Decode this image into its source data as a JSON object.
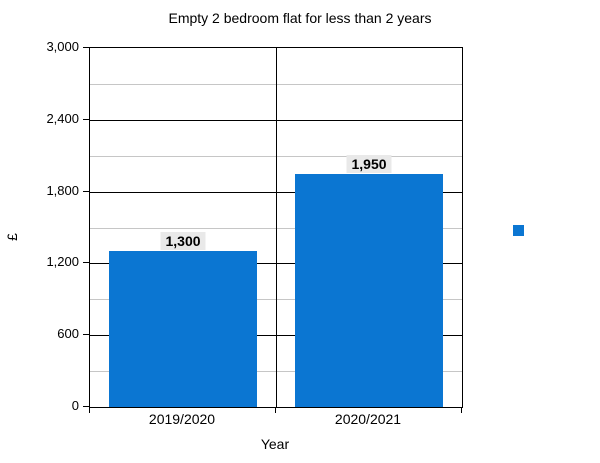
{
  "chart_data": {
    "type": "bar",
    "title": "Empty 2 bedroom flat for less than 2 years",
    "xlabel": "Year",
    "ylabel": "£",
    "categories": [
      "2019/2020",
      "2020/2021"
    ],
    "series": [
      {
        "name": "",
        "values": [
          1300,
          1950
        ]
      }
    ],
    "value_labels": [
      "1,300",
      "1,950"
    ],
    "ylim": [
      0,
      3000
    ],
    "y_major_ticks": [
      {
        "value": 0,
        "label": "0"
      },
      {
        "value": 600,
        "label": "600"
      },
      {
        "value": 1200,
        "label": "1,200"
      },
      {
        "value": 1800,
        "label": "1,800"
      },
      {
        "value": 2400,
        "label": "2,400"
      },
      {
        "value": 3000,
        "label": "3,000"
      }
    ],
    "y_minor_step": 300,
    "grid": "major black, minor light-gray, vertical category dividers",
    "legend_position": "right",
    "legend_has_text": false
  },
  "colors": {
    "bar": "#0b76d2",
    "major_grid": "#000000",
    "minor_grid": "#c6c6c6",
    "axis": "#000000",
    "label_bg": "#e9e9e9",
    "text": "#000000"
  }
}
